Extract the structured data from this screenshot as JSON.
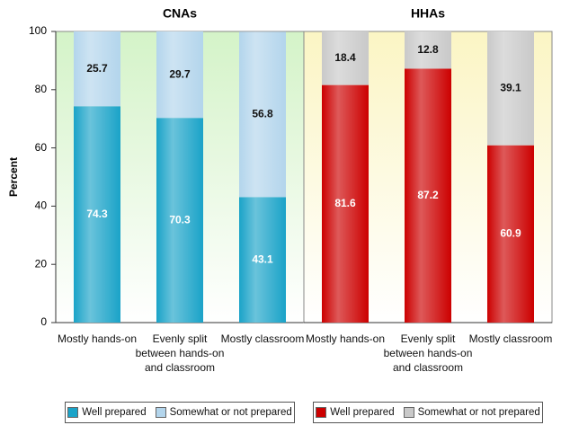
{
  "chart_data": [
    {
      "type": "bar",
      "stacked": true,
      "title": "CNAs",
      "y_label": "Percent",
      "categories": [
        "Mostly hands-on",
        "Evenly split between hands-on and classroom",
        "Mostly classroom"
      ],
      "series": [
        {
          "name": "Well prepared",
          "color": "#1aa3c8",
          "label_color": "#ffffff",
          "values": [
            74.3,
            70.3,
            43.1
          ]
        },
        {
          "name": "Somewhat or not prepared",
          "color": "#b3d5ec",
          "label_color": "#111111",
          "values": [
            25.7,
            29.7,
            56.8
          ]
        }
      ],
      "ylim": [
        0,
        100
      ],
      "yticks": [
        0,
        20,
        40,
        60,
        80,
        100
      ],
      "background": "#d4f3c8"
    },
    {
      "type": "bar",
      "stacked": true,
      "title": "HHAs",
      "categories": [
        "Mostly hands-on",
        "Evenly split between hands-on and classroom",
        "Mostly classroom"
      ],
      "series": [
        {
          "name": "Well prepared",
          "color": "#cc0000",
          "label_color": "#ffffff",
          "values": [
            81.6,
            87.2,
            60.9
          ]
        },
        {
          "name": "Somewhat or not prepared",
          "color": "#c9c9c9",
          "label_color": "#111111",
          "values": [
            18.4,
            12.8,
            39.1
          ]
        }
      ],
      "ylim": [
        0,
        100
      ],
      "background": "#fbf5c4"
    }
  ]
}
